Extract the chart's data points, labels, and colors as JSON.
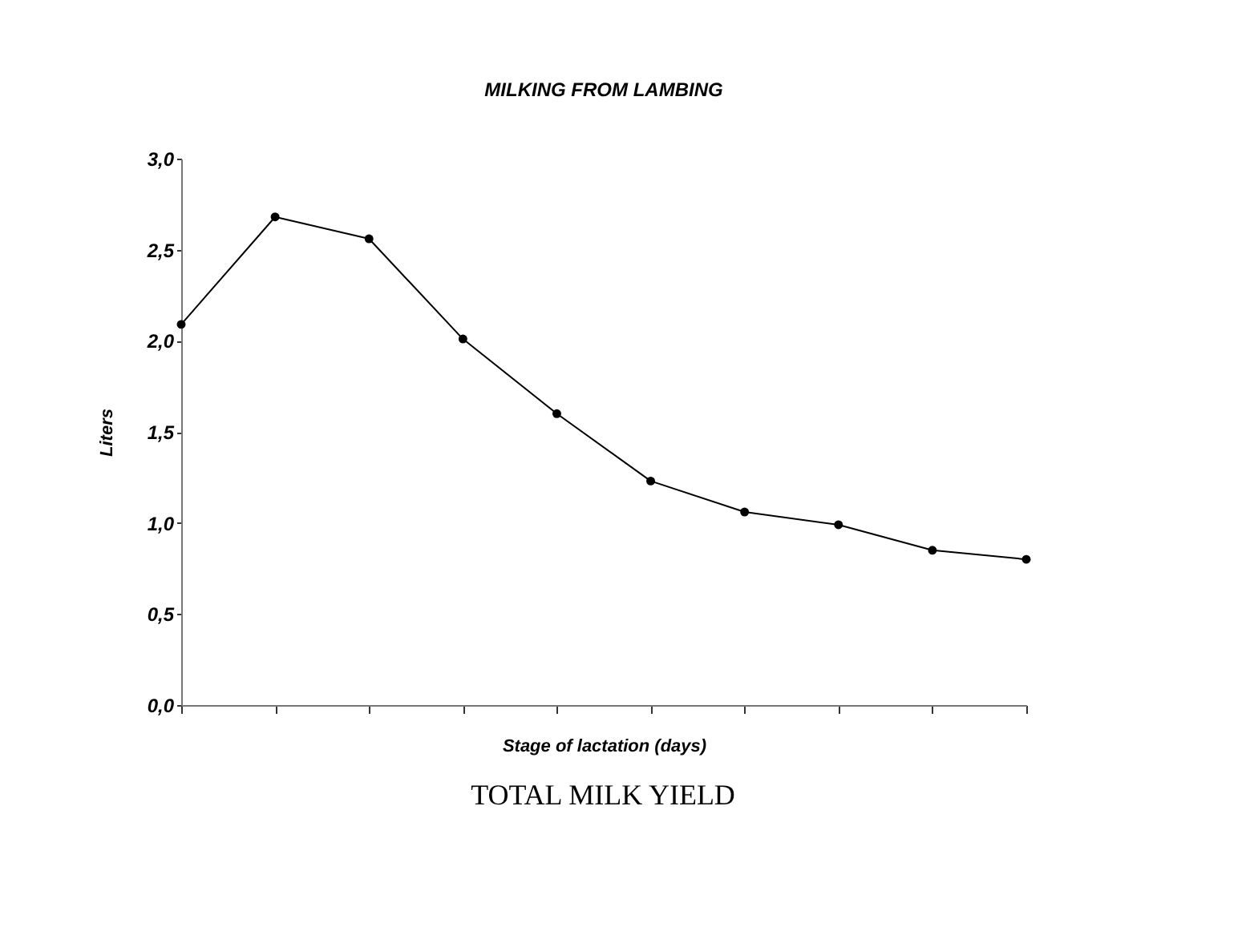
{
  "chart_data": {
    "type": "line",
    "title": "MILKING FROM LAMBING",
    "xlabel": "Stage of lactation (days)",
    "ylabel": "Liters",
    "categories": [
      null,
      null,
      null,
      null,
      null,
      null,
      null,
      null,
      null,
      null
    ],
    "series": [
      {
        "color": "#000000",
        "values": [
          2.09,
          2.68,
          2.56,
          2.01,
          1.6,
          1.23,
          1.06,
          0.99,
          0.85,
          0.8
        ]
      }
    ],
    "ylim": [
      0,
      3
    ],
    "yticks": [
      {
        "value": 0,
        "label": "0,0"
      },
      {
        "value": 0.5,
        "label": "0,5"
      },
      {
        "value": 1,
        "label": "1,0"
      },
      {
        "value": 1.5,
        "label": "1,5"
      },
      {
        "value": 2,
        "label": "2,0"
      },
      {
        "value": 2.5,
        "label": "2,5"
      },
      {
        "value": 3,
        "label": "3,0"
      }
    ],
    "marker": "circle",
    "line_style": "solid",
    "grid": false,
    "tick_labels": "y",
    "annotations": [
      "TOTAL MILK YIELD"
    ]
  }
}
